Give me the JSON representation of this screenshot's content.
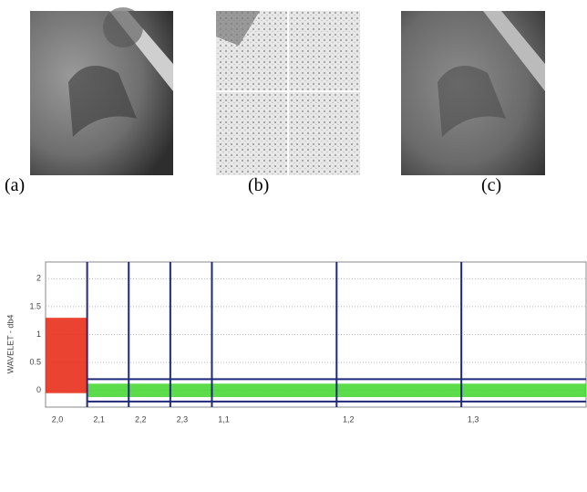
{
  "panels": [
    {
      "label": "(a)"
    },
    {
      "label": "(b)"
    },
    {
      "label": "(c)"
    }
  ],
  "chart_data": {
    "type": "band",
    "ylabel": "WAVELET - db4",
    "xlim": [
      0,
      13
    ],
    "ylim": [
      -0.3,
      2.3
    ],
    "yticks": [
      0,
      0.5,
      1,
      1.5,
      2
    ],
    "xticks": [
      {
        "value": 0,
        "label": "2,0"
      },
      {
        "value": 1,
        "label": "2,1"
      },
      {
        "value": 2,
        "label": "2,2"
      },
      {
        "value": 3,
        "label": "2,3"
      },
      {
        "value": 4,
        "label": "1,1"
      },
      {
        "value": 7,
        "label": "1,2"
      },
      {
        "value": 10,
        "label": "1,3"
      }
    ],
    "grid": true,
    "bands": [
      {
        "color": "#e8220e",
        "range": [
          -0.05,
          1.3
        ]
      },
      {
        "color": "#3fd62a",
        "range": [
          -0.12,
          0.12
        ]
      },
      {
        "color": "#3fd62a",
        "range": [
          -0.12,
          0.12
        ]
      },
      {
        "color": "#3fd62a",
        "range": [
          -0.12,
          0.12
        ]
      },
      {
        "color": "#3fd62a",
        "range": [
          -0.12,
          0.12
        ]
      },
      {
        "color": "#3fd62a",
        "range": [
          -0.12,
          0.12
        ]
      },
      {
        "color": "#3fd62a",
        "range": [
          -0.12,
          0.12
        ]
      }
    ],
    "thresholds": [
      0.2,
      -0.2
    ],
    "line_color": "#1f2a7a"
  }
}
